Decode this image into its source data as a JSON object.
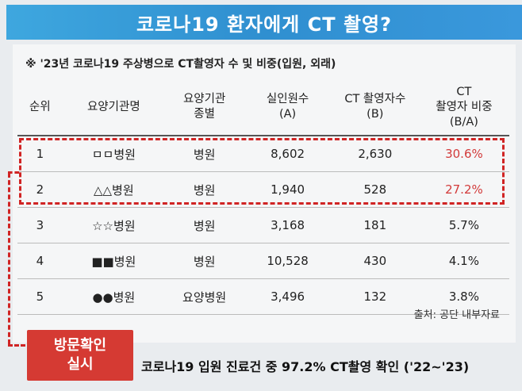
{
  "banner": {
    "title": "코로나19 환자에게 CT 촬영?"
  },
  "note": "※ '23년 코로나19 주상병으로 CT촬영자 수 및 비중(입원, 외래)",
  "table": {
    "headers": [
      "순위",
      "요양기관명",
      "요양기관\n종별",
      "실인원수\n(A)",
      "CT 촬영자수\n(B)",
      "CT\n촬영자 비중\n(B/A)"
    ],
    "rows": [
      [
        "1",
        "ㅁㅁ병원",
        "병원",
        "8,602",
        "2,630",
        "30.6%"
      ],
      [
        "2",
        "△△병원",
        "병원",
        "1,940",
        "528",
        "27.2%"
      ],
      [
        "3",
        "☆☆병원",
        "병원",
        "3,168",
        "181",
        "5.7%"
      ],
      [
        "4",
        "■■병원",
        "병원",
        "10,528",
        "430",
        "4.1%"
      ],
      [
        "5",
        "●●병원",
        "요양병원",
        "3,496",
        "132",
        "3.8%"
      ]
    ]
  },
  "source": "출처: 공단 내부자료",
  "visit_box": {
    "line1": "방문확인",
    "line2": "실시"
  },
  "bottom_line": "코로나19 입원 진료건 중 97.2% CT촬영 확인 ('22~'23)",
  "colors": {
    "accent_red": "#d02424",
    "banner_blue": "#2f8fd0"
  }
}
